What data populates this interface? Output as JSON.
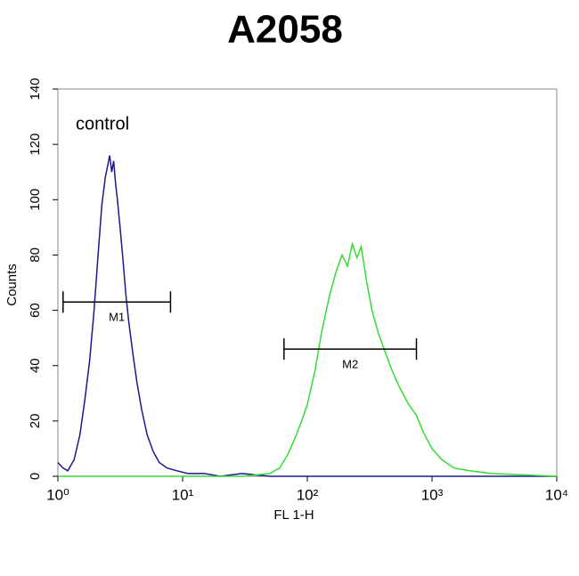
{
  "chart_data": {
    "type": "line",
    "title": "A2058",
    "xlabel": "FL 1-H",
    "ylabel": "Counts",
    "annotations": [
      "control"
    ],
    "xscale": "log",
    "xlim": [
      1,
      10000
    ],
    "xticks": [
      {
        "value": 1,
        "label": "10⁰"
      },
      {
        "value": 10,
        "label": "10¹"
      },
      {
        "value": 100,
        "label": "10²"
      },
      {
        "value": 1000,
        "label": "10³"
      },
      {
        "value": 10000,
        "label": "10⁴"
      }
    ],
    "ylim": [
      0,
      140
    ],
    "yticks": [
      0,
      20,
      40,
      60,
      80,
      100,
      120,
      140
    ],
    "series": [
      {
        "color": "#1a1a8c",
        "x": [
          1,
          1.1,
          1.2,
          1.35,
          1.5,
          1.65,
          1.8,
          1.95,
          2.1,
          2.25,
          2.4,
          2.5,
          2.6,
          2.7,
          2.8,
          2.9,
          3.0,
          3.15,
          3.3,
          3.5,
          3.7,
          4.0,
          4.3,
          4.7,
          5.2,
          5.8,
          6.5,
          7.5,
          9,
          11,
          15,
          20,
          30,
          50,
          100,
          1000,
          10000
        ],
        "values": [
          5,
          3,
          2,
          6,
          15,
          28,
          42,
          60,
          80,
          98,
          108,
          112,
          116,
          110,
          114,
          106,
          100,
          90,
          80,
          66,
          56,
          44,
          34,
          24,
          15,
          9,
          5,
          3,
          2,
          1,
          1,
          0,
          1,
          0,
          0,
          0,
          0
        ]
      },
      {
        "color": "#33dd33",
        "x": [
          1,
          10,
          30,
          50,
          60,
          70,
          80,
          90,
          100,
          115,
          130,
          150,
          170,
          190,
          210,
          230,
          250,
          270,
          300,
          330,
          370,
          420,
          480,
          550,
          650,
          750,
          850,
          1000,
          1200,
          1500,
          2000,
          3000,
          10000
        ],
        "values": [
          0,
          0,
          0,
          1,
          3,
          8,
          14,
          20,
          26,
          38,
          52,
          65,
          74,
          80,
          76,
          84,
          79,
          83,
          70,
          60,
          52,
          45,
          38,
          32,
          26,
          22,
          16,
          10,
          6,
          3,
          2,
          1,
          0
        ]
      }
    ],
    "markers": [
      {
        "label": "M1",
        "range": [
          1.1,
          8
        ],
        "y": 63
      },
      {
        "label": "M2",
        "range": [
          65,
          750
        ],
        "y": 46
      }
    ]
  }
}
